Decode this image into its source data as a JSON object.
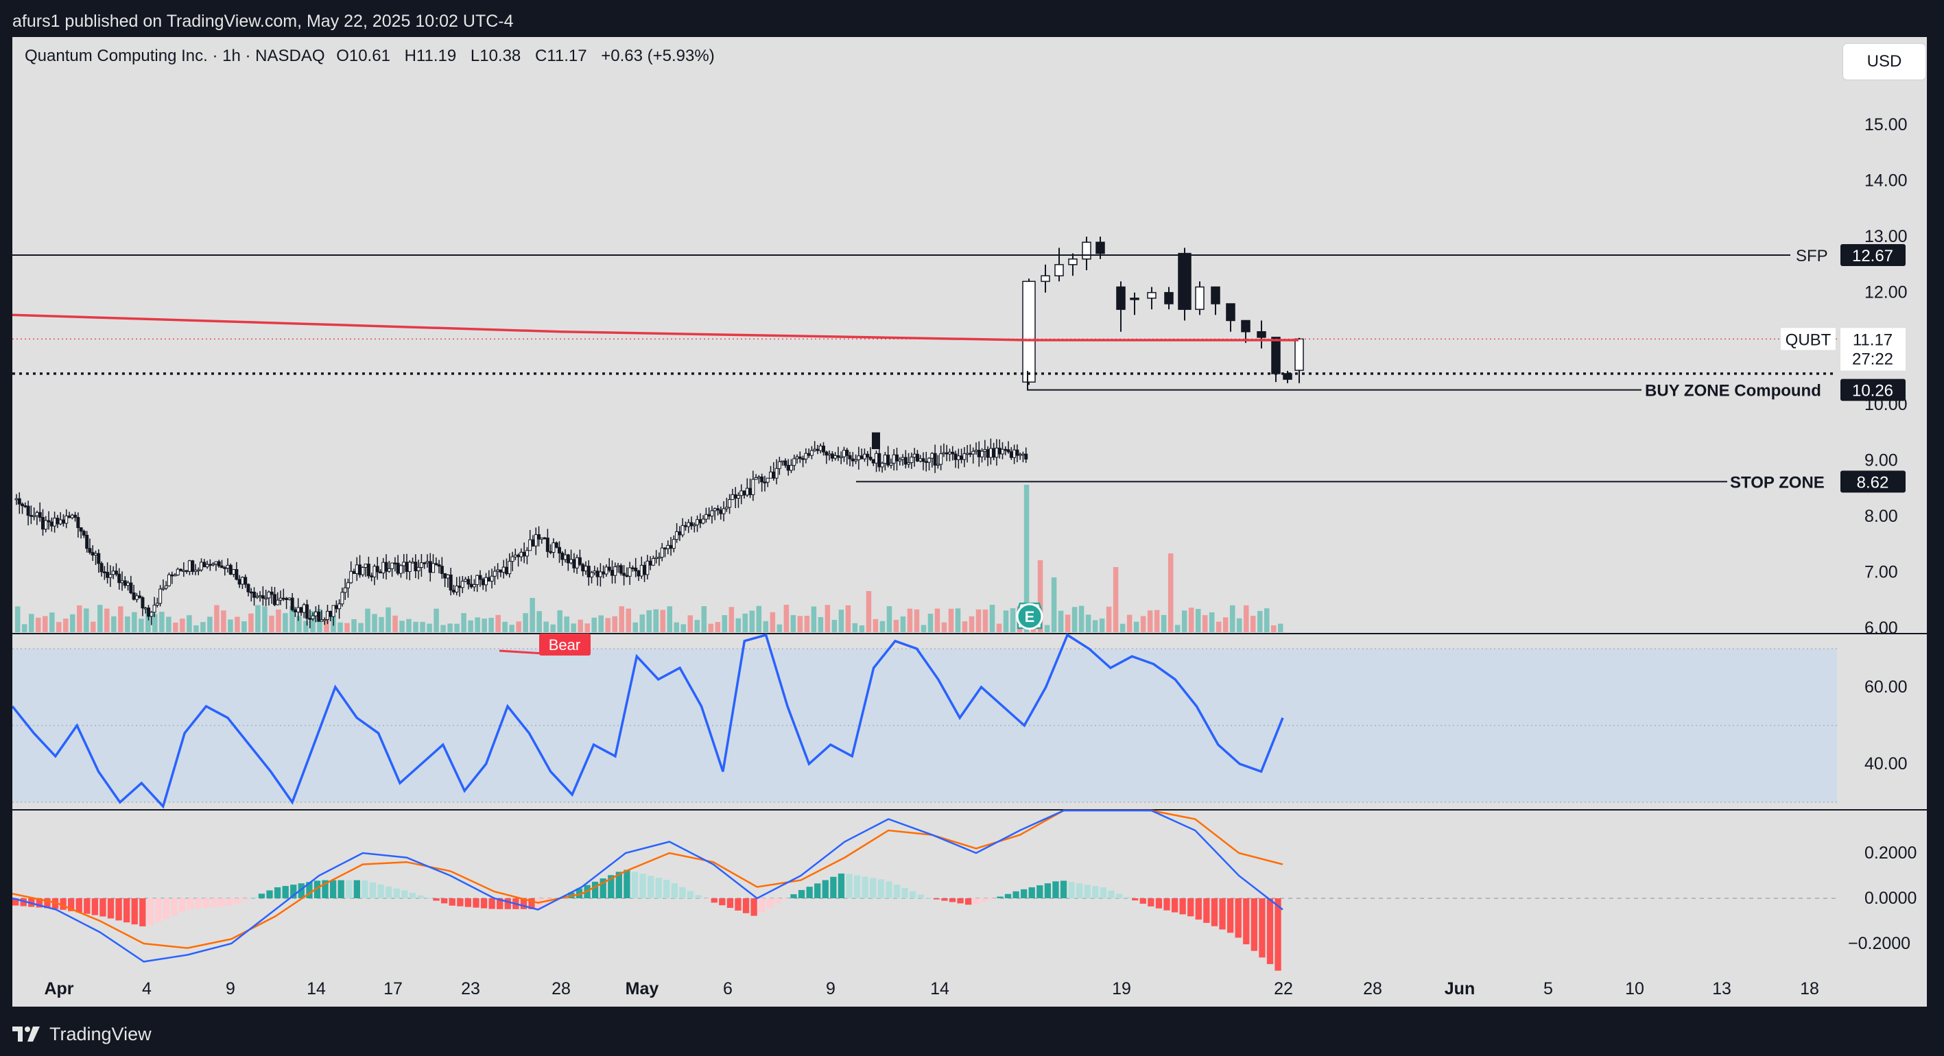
{
  "topbar": {
    "publisher_text": "afurs1 published on TradingView.com, May 22, 2025 10:02 UTC-4"
  },
  "legend": {
    "symbol": "Quantum Computing Inc. · 1h · NASDAQ",
    "open": "O10.61",
    "high": "H11.19",
    "low": "L10.38",
    "close": "C11.17",
    "change": "+0.63 (+5.93%)"
  },
  "currency_button": "USD",
  "footer": {
    "brand": "TradingView"
  },
  "colors": {
    "background": "#e0e0e0",
    "frame": "#131722",
    "ma_line": "#e53946",
    "rsi_line": "#2962ff",
    "rsi_band": "#cfdbe8",
    "macd_line": "#2962ff",
    "signal_line": "#ff6d00",
    "hist_up_strong": "#26a69a",
    "hist_up_weak": "#b2dfdb",
    "hist_down_strong": "#ff5252",
    "hist_down_weak": "#ffcdd2",
    "volume_up": "#7fc4bd",
    "volume_down": "#ef9a9a",
    "bear_label": "#f23645"
  },
  "chart_data": [
    {
      "type": "candlestick",
      "title": "Quantum Computing Inc. · 1h · NASDAQ",
      "timeframe": "1h",
      "ylim": [
        6.0,
        16.0
      ],
      "y_ticks": [
        "15.00",
        "14.00",
        "13.00",
        "12.00",
        "10.00",
        "9.00",
        "8.00",
        "7.00",
        "6.00"
      ],
      "x_ticks": [
        "Apr",
        "4",
        "9",
        "14",
        "17",
        "23",
        "28",
        "May",
        "6",
        "9",
        "14",
        "19",
        "22",
        "28",
        "Jun",
        "5",
        "10",
        "13",
        "18"
      ],
      "last_price": {
        "symbol": "QUBT",
        "value": "11.17",
        "countdown": "27:22"
      },
      "levels": [
        {
          "label": "SFP",
          "value": 12.67,
          "tag": "12.67"
        },
        {
          "label": "BUY ZONE Compound",
          "value": 10.26,
          "tag": "10.26"
        },
        {
          "label": "STOP ZONE",
          "value": 8.62,
          "tag": "8.62"
        }
      ],
      "dotted_level": 10.55,
      "moving_average": [
        {
          "date": "Apr 1",
          "value": 11.6
        },
        {
          "date": "Apr 14",
          "value": 11.45
        },
        {
          "date": "May 1",
          "value": 11.3
        },
        {
          "date": "May 16",
          "value": 11.15
        },
        {
          "date": "May 22",
          "value": 11.15
        }
      ],
      "earnings_marker": "E",
      "bear_label": "Bear",
      "ohlc_sample_daily": [
        {
          "date": "Apr 1",
          "close": 8.3
        },
        {
          "date": "Apr 4",
          "close": 7.2
        },
        {
          "date": "Apr 9",
          "close": 6.2
        },
        {
          "date": "Apr 14",
          "close": 7.3
        },
        {
          "date": "Apr 17",
          "close": 6.6
        },
        {
          "date": "Apr 23",
          "close": 7.0
        },
        {
          "date": "Apr 28",
          "close": 7.0
        },
        {
          "date": "May 1",
          "close": 7.2
        },
        {
          "date": "May 6",
          "close": 6.9
        },
        {
          "date": "May 9",
          "close": 8.6
        },
        {
          "date": "May 14",
          "close": 8.8
        },
        {
          "date": "May 16",
          "close": 12.2
        },
        {
          "date": "May 19",
          "close": 12.0
        },
        {
          "date": "May 21",
          "close": 10.4
        },
        {
          "date": "May 22",
          "close": 11.17
        }
      ]
    },
    {
      "type": "line",
      "title": "RSI",
      "ylim": [
        20,
        80
      ],
      "y_ticks": [
        "60.00",
        "40.00"
      ],
      "band": [
        30,
        70
      ],
      "midline": 50,
      "series": [
        {
          "values": [
            55,
            48,
            42,
            50,
            38,
            30,
            35,
            28,
            48,
            55,
            52,
            45,
            38,
            30,
            45,
            60,
            52,
            48,
            35,
            40,
            45,
            33,
            40,
            55,
            48,
            38,
            32,
            45,
            42,
            68,
            62,
            65,
            55,
            38,
            72,
            75,
            55,
            40,
            45,
            42,
            65,
            72,
            70,
            62,
            52,
            60,
            55,
            50,
            60,
            75,
            70,
            65,
            68,
            66,
            62,
            55,
            45,
            40,
            38,
            52
          ]
        }
      ]
    },
    {
      "type": "line",
      "title": "MACD",
      "ylim": [
        -0.3,
        0.35
      ],
      "y_ticks": [
        "0.2000",
        "0.0000",
        "−0.2000"
      ],
      "series": [
        {
          "values": [
            0.0,
            -0.05,
            -0.15,
            -0.28,
            -0.25,
            -0.2,
            -0.05,
            0.1,
            0.2,
            0.18,
            0.1,
            0.0,
            -0.05,
            0.05,
            0.2,
            0.25,
            0.15,
            0.0,
            0.1,
            0.25,
            0.35,
            0.28,
            0.2,
            0.3,
            0.45,
            0.5,
            0.4,
            0.3,
            0.1,
            -0.05
          ]
        },
        {
          "values": [
            0.02,
            -0.02,
            -0.1,
            -0.2,
            -0.22,
            -0.18,
            -0.08,
            0.05,
            0.15,
            0.16,
            0.12,
            0.03,
            -0.02,
            0.02,
            0.12,
            0.2,
            0.16,
            0.05,
            0.08,
            0.18,
            0.3,
            0.28,
            0.22,
            0.28,
            0.4,
            0.47,
            0.42,
            0.35,
            0.2,
            0.15
          ]
        }
      ]
    }
  ]
}
